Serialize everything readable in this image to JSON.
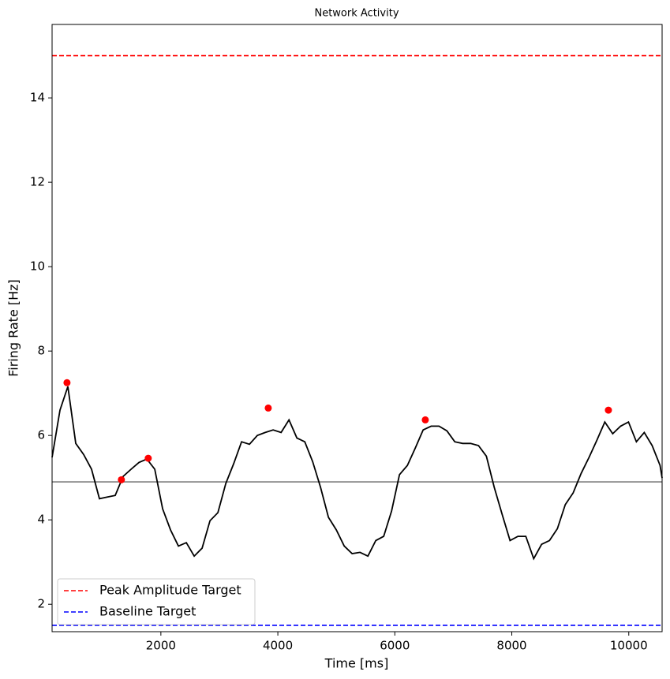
{
  "chart_data": {
    "type": "line",
    "title": "Network Activity",
    "xlabel": "Time [ms]",
    "ylabel": "Firing Rate [Hz]",
    "xlim": [
      140,
      10570
    ],
    "ylim": [
      1.35,
      15.74
    ],
    "xticks": [
      2000,
      4000,
      6000,
      8000,
      10000
    ],
    "yticks": [
      2,
      4,
      6,
      8,
      10,
      12,
      14
    ],
    "x": [
      140,
      275,
      410,
      545,
      680,
      815,
      950,
      1085,
      1220,
      1355,
      1490,
      1625,
      1760,
      1895,
      2030,
      2165,
      2300,
      2435,
      2570,
      2705,
      2840,
      2975,
      3110,
      3245,
      3380,
      3515,
      3650,
      3785,
      3920,
      4055,
      4190,
      4325,
      4460,
      4595,
      4730,
      4865,
      5000,
      5135,
      5270,
      5405,
      5540,
      5675,
      5810,
      5945,
      6080,
      6215,
      6350,
      6485,
      6620,
      6755,
      6890,
      7025,
      7160,
      7295,
      7430,
      7565,
      7700,
      7835,
      7970,
      8105,
      8240,
      8375,
      8510,
      8645,
      8780,
      8915,
      9050,
      9185,
      9320,
      9455,
      9590,
      9725,
      9860,
      9995,
      10130,
      10265,
      10400,
      10535,
      10570
    ],
    "series": [
      {
        "color": "#000000",
        "values": [
          5.48,
          6.6,
          7.16,
          5.81,
          5.55,
          5.2,
          4.5,
          4.54,
          4.58,
          5.03,
          5.2,
          5.36,
          5.44,
          5.2,
          4.26,
          3.76,
          3.38,
          3.46,
          3.14,
          3.33,
          3.98,
          4.17,
          4.86,
          5.33,
          5.85,
          5.79,
          6.0,
          6.07,
          6.13,
          6.07,
          6.37,
          5.94,
          5.85,
          5.38,
          4.77,
          4.06,
          3.76,
          3.38,
          3.2,
          3.23,
          3.14,
          3.51,
          3.61,
          4.21,
          5.07,
          5.29,
          5.7,
          6.13,
          6.22,
          6.22,
          6.11,
          5.85,
          5.81,
          5.81,
          5.76,
          5.51,
          4.77,
          4.13,
          3.51,
          3.61,
          3.61,
          3.08,
          3.42,
          3.51,
          3.79,
          4.36,
          4.64,
          5.1,
          5.48,
          5.89,
          6.32,
          6.04,
          6.22,
          6.32,
          5.85,
          6.07,
          5.76,
          5.29,
          4.99
        ]
      }
    ],
    "peaks": {
      "color": "#ff0000",
      "x": [
        395,
        1325,
        1784,
        3836,
        6521,
        9652
      ],
      "values": [
        7.25,
        4.95,
        5.46,
        6.65,
        6.37,
        6.6
      ]
    },
    "hlines": [
      {
        "name": "Peak Amplitude Target",
        "value": 15,
        "color": "#ff0000",
        "dashed": true
      },
      {
        "name": "Baseline Target",
        "value": 1.5,
        "color": "#0000ff",
        "dashed": true
      },
      {
        "value": 4.9,
        "color": "#808080",
        "dashed": false
      }
    ],
    "legend": "lower left"
  }
}
